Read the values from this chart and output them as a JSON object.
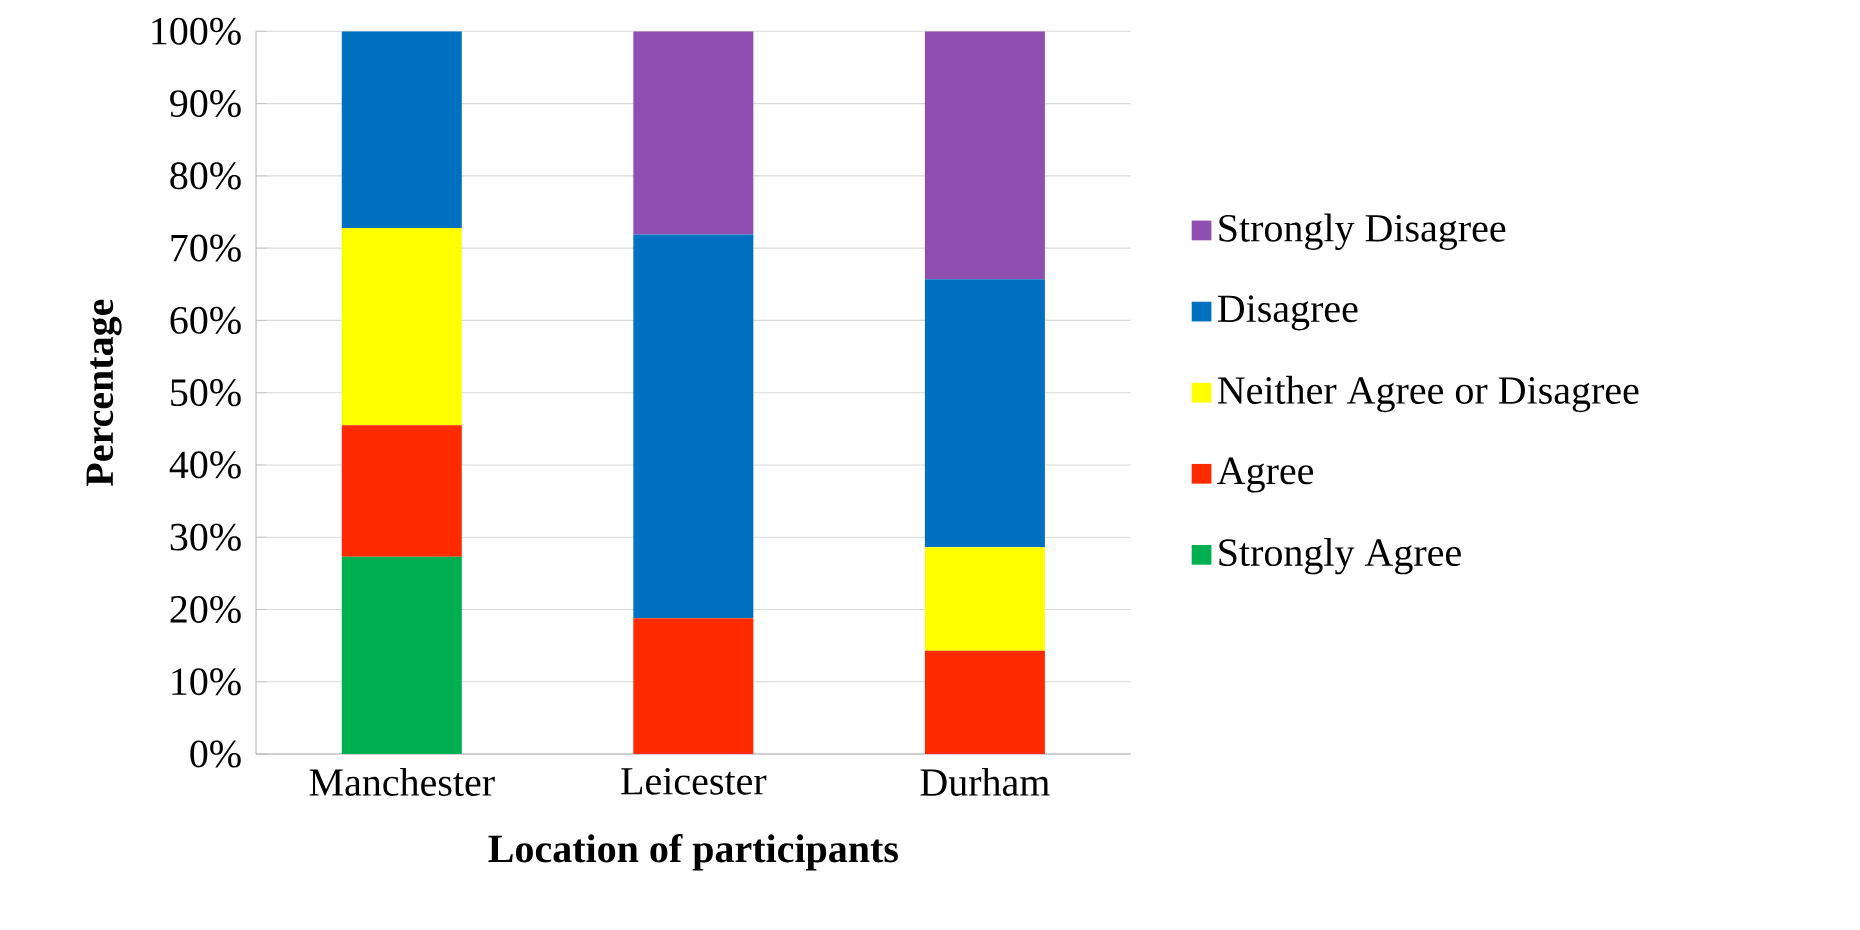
{
  "chart_data": {
    "type": "bar",
    "stacked": true,
    "xlabel": "Location of participants",
    "ylabel": "Percentage",
    "categories": [
      "Manchester",
      "Leicester",
      "Durham"
    ],
    "series": [
      {
        "name": "Strongly Agree",
        "color": "#00b050",
        "values": [
          27.3,
          0,
          0
        ]
      },
      {
        "name": "Agree",
        "color": "#ff2a00",
        "values": [
          18.2,
          18.8,
          14.3
        ]
      },
      {
        "name": "Neither Agree or Disagree",
        "color": "#ffff00",
        "values": [
          27.3,
          0,
          14.3
        ]
      },
      {
        "name": "Disagree",
        "color": "#0070c0",
        "values": [
          27.2,
          53.1,
          37.1
        ]
      },
      {
        "name": "Strongly Disagree",
        "color": "#8e4fb0",
        "values": [
          0,
          28.1,
          34.3
        ]
      }
    ],
    "ylim": [
      0,
      100
    ],
    "yticks": [
      {
        "value": 0,
        "label": "0%"
      },
      {
        "value": 10,
        "label": "10%"
      },
      {
        "value": 20,
        "label": "20%"
      },
      {
        "value": 30,
        "label": "30%"
      },
      {
        "value": 40,
        "label": "40%"
      },
      {
        "value": 50,
        "label": "50%"
      },
      {
        "value": 60,
        "label": "60%"
      },
      {
        "value": 70,
        "label": "70%"
      },
      {
        "value": 80,
        "label": "80%"
      },
      {
        "value": 90,
        "label": "90%"
      },
      {
        "value": 100,
        "label": "100%"
      }
    ],
    "grid": "y",
    "legend": "right"
  }
}
